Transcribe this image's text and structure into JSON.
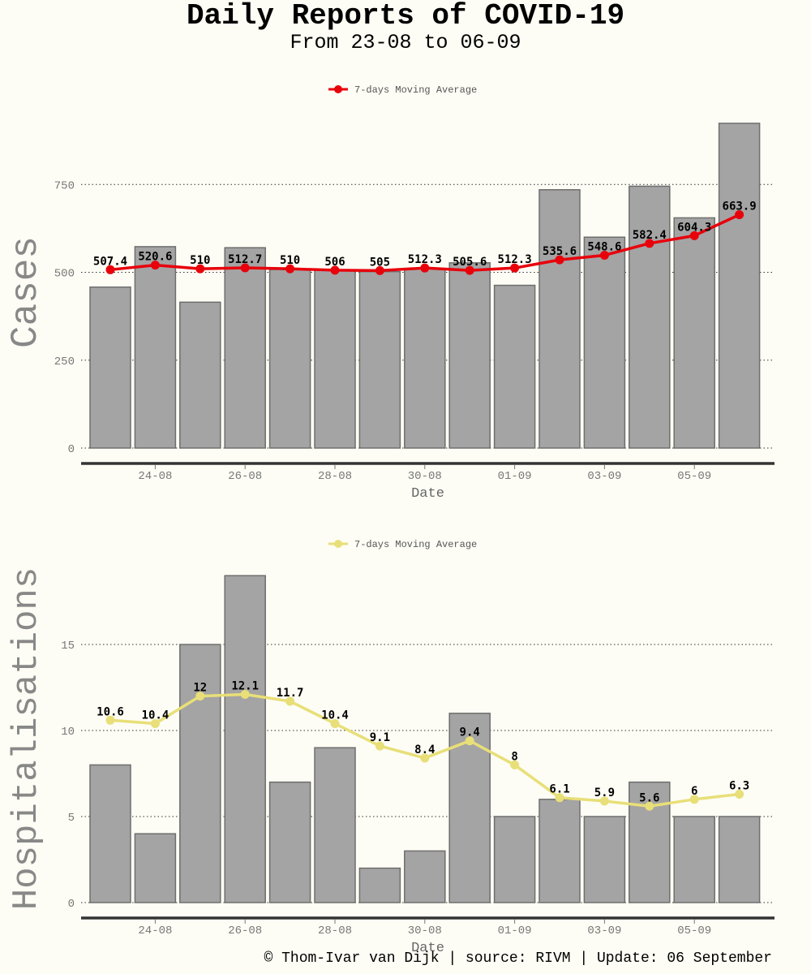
{
  "header": {
    "title": "Daily Reports of COVID-19",
    "subtitle": "From 23-08 to 06-09"
  },
  "footer": {
    "text": "© Thom-Ivar van Dijk | source: RIVM | Update: 06 September"
  },
  "chart_data": [
    {
      "type": "bar",
      "ylabel": "Cases",
      "xlabel": "Date",
      "x": [
        "23-08",
        "24-08",
        "25-08",
        "26-08",
        "27-08",
        "28-08",
        "29-08",
        "30-08",
        "31-08",
        "01-09",
        "02-09",
        "03-09",
        "04-09",
        "05-09",
        "06-09"
      ],
      "x_ticks": [
        "24-08",
        "26-08",
        "28-08",
        "30-08",
        "01-09",
        "03-09",
        "05-09"
      ],
      "y_ticks": [
        0,
        250,
        500,
        750
      ],
      "ylim": [
        0,
        940
      ],
      "grid": "horizontal dotted",
      "legend_position": "top-center",
      "series": [
        {
          "type": "bar",
          "color": "#a4a4a4",
          "values": [
            458,
            573,
            415,
            570,
            508,
            506,
            502,
            510,
            527,
            463,
            735,
            600,
            745,
            655,
            924
          ]
        },
        {
          "type": "line",
          "name": "7-days Moving Average",
          "color": "#e8000b",
          "values": [
            507.4,
            520.6,
            510,
            512.7,
            510,
            506,
            505,
            512.3,
            505.6,
            512.3,
            535.6,
            548.6,
            582.4,
            604.3,
            663.9
          ],
          "labels": [
            "507.4",
            "520.6",
            "510",
            "512.7",
            "510",
            "506",
            "505",
            "512.3",
            "505.6",
            "512.3",
            "535.6",
            "548.6",
            "582.4",
            "604.3",
            "663.9"
          ]
        }
      ]
    },
    {
      "type": "bar",
      "ylabel": "Hospitalisations",
      "xlabel": "Date",
      "x": [
        "23-08",
        "24-08",
        "25-08",
        "26-08",
        "27-08",
        "28-08",
        "29-08",
        "30-08",
        "31-08",
        "01-09",
        "02-09",
        "03-09",
        "04-09",
        "05-09",
        "06-09"
      ],
      "x_ticks": [
        "24-08",
        "26-08",
        "28-08",
        "30-08",
        "01-09",
        "03-09",
        "05-09"
      ],
      "y_ticks": [
        0,
        5,
        10,
        15
      ],
      "ylim": [
        0,
        19.2
      ],
      "grid": "horizontal dotted",
      "legend_position": "top-center",
      "series": [
        {
          "type": "bar",
          "color": "#a4a4a4",
          "values": [
            8,
            4,
            15,
            19,
            7,
            9,
            2,
            3,
            11,
            5,
            6,
            5,
            7,
            5,
            5
          ]
        },
        {
          "type": "line",
          "name": "7-days Moving Average",
          "color": "#e8df78",
          "values": [
            10.6,
            10.4,
            12,
            12.1,
            11.7,
            10.4,
            9.1,
            8.4,
            9.4,
            8,
            6.1,
            5.9,
            5.6,
            6,
            6.3
          ],
          "labels": [
            "10.6",
            "10.4",
            "12",
            "12.1",
            "11.7",
            "10.4",
            "9.1",
            "8.4",
            "9.4",
            "8",
            "6.1",
            "5.9",
            "5.6",
            "6",
            "6.3"
          ]
        }
      ]
    }
  ]
}
